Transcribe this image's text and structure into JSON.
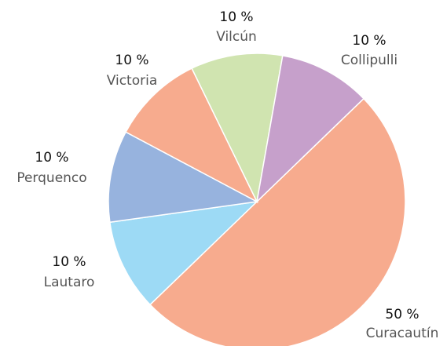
{
  "chart_data": {
    "type": "pie",
    "categories": [
      "Curacautín",
      "Lautaro",
      "Perquenco",
      "Victoria",
      "Vilcún",
      "Collipulli"
    ],
    "values": [
      50,
      10,
      10,
      10,
      10,
      10
    ],
    "value_labels": [
      "50 %",
      "10 %",
      "10 %",
      "10 %",
      "10 %",
      "10 %"
    ],
    "colors": [
      "#f7ab8e",
      "#9ddaf5",
      "#97b3de",
      "#f7ab8e",
      "#d0e4b0",
      "#c6a0cb"
    ]
  }
}
